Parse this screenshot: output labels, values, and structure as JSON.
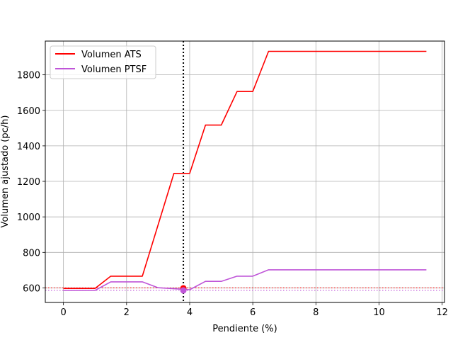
{
  "chart_data": {
    "type": "line",
    "title": "",
    "xlabel": "Pendiente (%)",
    "ylabel": "Volumen ajustado (pc/h)",
    "xlim": [
      -0.575,
      12.075
    ],
    "ylim": [
      518,
      1990
    ],
    "xticks": [
      0,
      2,
      4,
      6,
      8,
      10,
      12
    ],
    "yticks": [
      600,
      800,
      1000,
      1200,
      1400,
      1600,
      1800
    ],
    "grid": true,
    "legend_position": "top-left",
    "series": [
      {
        "name": "Volumen ATS",
        "color": "#ff0000",
        "x": [
          0,
          1,
          1.5,
          2.5,
          3.5,
          4,
          4.5,
          5,
          5.5,
          6,
          6.5,
          11.5
        ],
        "y": [
          597,
          597,
          666,
          666,
          1245,
          1245,
          1517,
          1517,
          1706,
          1706,
          1932,
          1932
        ]
      },
      {
        "name": "Volumen PTSF",
        "color": "#bf55d8",
        "x": [
          0,
          1,
          1.5,
          2.5,
          3,
          4,
          4.5,
          5,
          5.5,
          6,
          6.5,
          11.5
        ],
        "y": [
          586,
          586,
          634,
          634,
          601,
          590,
          637,
          637,
          666,
          666,
          702,
          702
        ]
      }
    ],
    "reference_lines": {
      "vertical": {
        "x": 3.8,
        "color": "#000000",
        "style": "dotted"
      },
      "horizontal": [
        {
          "y": 600,
          "color": "#ff0000",
          "style": "dotted"
        },
        {
          "y": 586,
          "color": "#bf55d8",
          "style": "dotted"
        }
      ]
    },
    "markers": [
      {
        "x": 3.8,
        "y": 598,
        "color": "#ff0000"
      },
      {
        "x": 3.8,
        "y": 586,
        "color": "#bf55d8"
      }
    ]
  }
}
